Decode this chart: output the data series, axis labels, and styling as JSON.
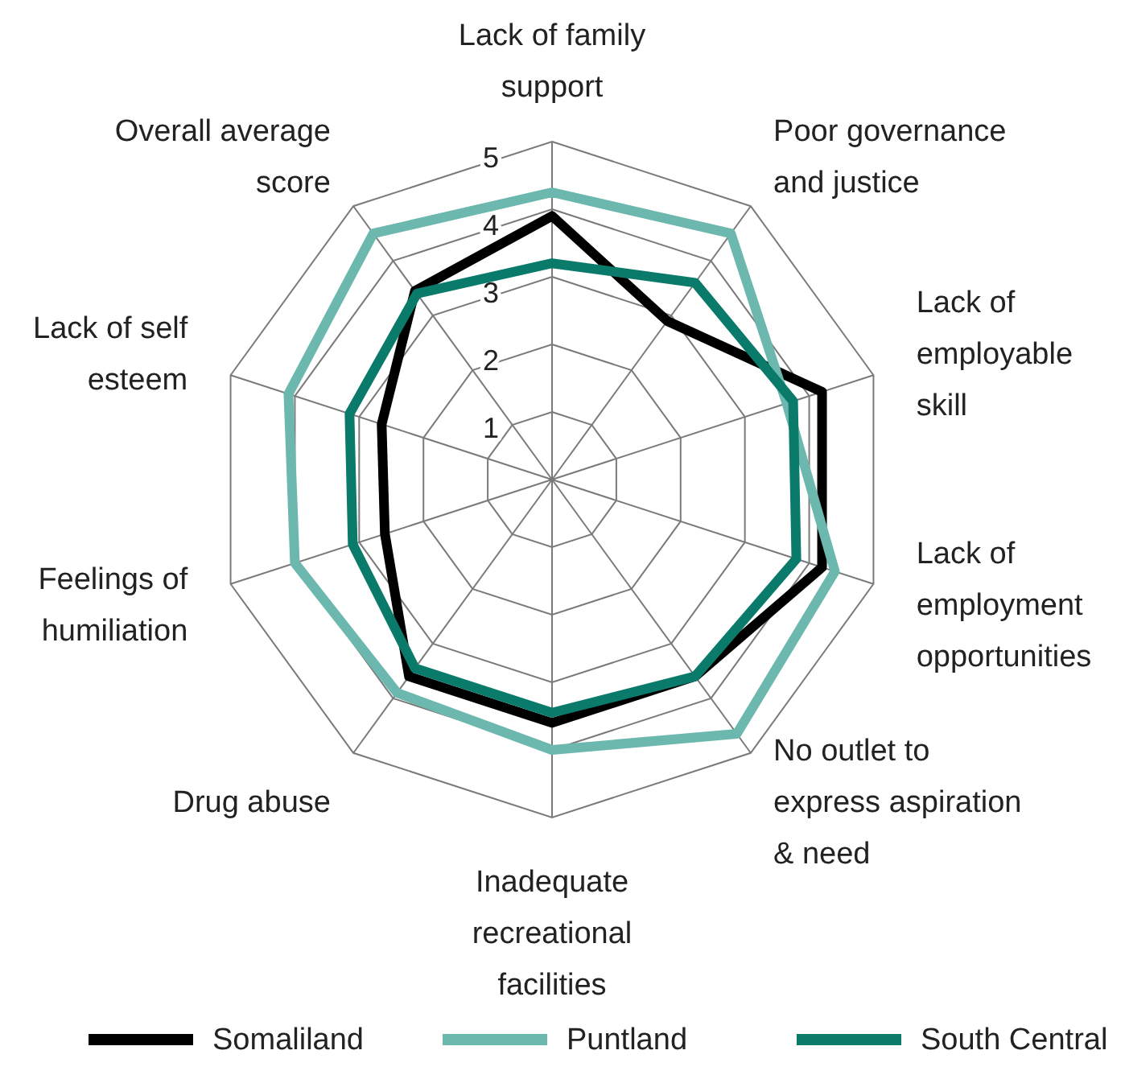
{
  "chart_data": {
    "type": "radar",
    "categories": [
      "Lack of family support",
      "Poor governance and justice",
      "Lack of employable skill",
      "Lack of employment opportunities",
      "No outlet to express aspiration & need",
      "Inadequate recreational facilities",
      "Drug abuse",
      "Feelings of humiliation",
      "Lack of self esteem",
      "Overall average score"
    ],
    "series": [
      {
        "name": "Somaliland",
        "color": "#000000",
        "values": [
          3.9,
          2.9,
          4.2,
          4.2,
          3.6,
          3.6,
          3.6,
          2.6,
          2.65,
          3.45
        ]
      },
      {
        "name": "Puntland",
        "color": "#6cb8ae",
        "values": [
          4.25,
          4.5,
          3.65,
          4.4,
          4.65,
          4.0,
          3.9,
          4.0,
          4.1,
          4.5
        ]
      },
      {
        "name": "South Central",
        "color": "#0a7a6a",
        "values": [
          3.2,
          3.6,
          3.75,
          3.8,
          3.6,
          3.45,
          3.45,
          3.1,
          3.15,
          3.4
        ]
      }
    ],
    "ylim": [
      0,
      5
    ],
    "yticks": [
      1,
      2,
      3,
      4,
      5
    ],
    "grid": true,
    "legend": "bottom",
    "line_style": "solid",
    "marker": "none"
  }
}
